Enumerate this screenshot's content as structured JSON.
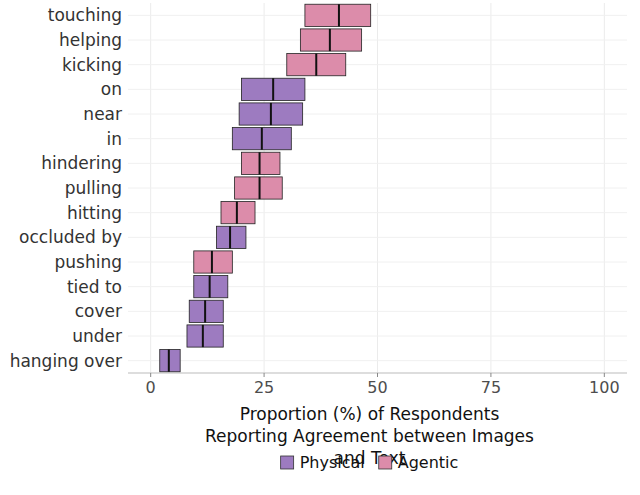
{
  "chart_data": {
    "type": "bar",
    "orientation": "horizontal",
    "xlabel": "Proportion (%) of Respondents Reporting Agreement between Images and Text",
    "categories": [
      "touching",
      "helping",
      "kicking",
      "on",
      "near",
      "in",
      "hindering",
      "pulling",
      "hitting",
      "occluded by",
      "pushing",
      "tied to",
      "cover",
      "under",
      "hanging over"
    ],
    "series": [
      {
        "name": "Physical",
        "color": "#9d7bc0",
        "values": [
          null,
          null,
          null,
          27,
          26.5,
          24.5,
          null,
          null,
          null,
          17.5,
          null,
          13,
          12,
          11.5,
          4
        ],
        "lower": [
          null,
          null,
          null,
          20,
          19.5,
          18,
          null,
          null,
          null,
          14.5,
          null,
          9.5,
          8.5,
          8,
          2
        ],
        "upper": [
          null,
          null,
          null,
          34,
          33.5,
          31,
          null,
          null,
          null,
          21,
          null,
          17,
          16,
          16,
          6.5
        ]
      },
      {
        "name": "Agentic",
        "color": "#dc8caa",
        "values": [
          41.5,
          39.5,
          36.5,
          null,
          null,
          null,
          24,
          24,
          19,
          null,
          13.5,
          null,
          null,
          null,
          null
        ],
        "lower": [
          34,
          33,
          30,
          null,
          null,
          null,
          20,
          18.5,
          15.5,
          null,
          9.5,
          null,
          null,
          null,
          null
        ],
        "upper": [
          48.5,
          46.5,
          43,
          null,
          null,
          null,
          28.5,
          29,
          23,
          null,
          18,
          null,
          null,
          null,
          null
        ]
      }
    ],
    "xlim": [
      -5,
      105
    ],
    "xticks": [
      0,
      25,
      50,
      75,
      100
    ],
    "grid": true,
    "legend": "bottom"
  }
}
